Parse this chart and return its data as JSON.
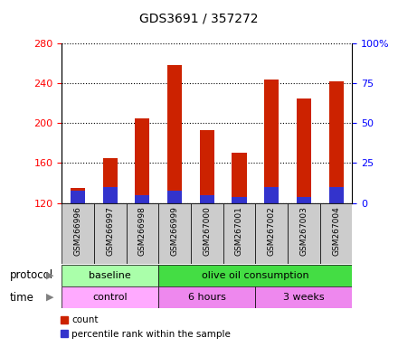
{
  "title": "GDS3691 / 357272",
  "samples": [
    "GSM266996",
    "GSM266997",
    "GSM266998",
    "GSM266999",
    "GSM267000",
    "GSM267001",
    "GSM267002",
    "GSM267003",
    "GSM267004"
  ],
  "bar_bottom": 120,
  "count_values": [
    135,
    165,
    205,
    258,
    193,
    170,
    244,
    225,
    242
  ],
  "pct_rank_values": [
    8,
    10,
    5,
    8,
    5,
    4,
    10,
    4,
    10
  ],
  "bar_color_red": "#cc2200",
  "bar_color_blue": "#3333cc",
  "ylim_left": [
    120,
    280
  ],
  "ylim_right": [
    0,
    100
  ],
  "yticks_left": [
    120,
    160,
    200,
    240,
    280
  ],
  "yticks_right": [
    0,
    25,
    50,
    75,
    100
  ],
  "protocol_baseline_color": "#aaffaa",
  "protocol_olive_color": "#44dd44",
  "time_control_color": "#ffaaff",
  "time_hours_color": "#ee88ee",
  "time_weeks_color": "#ee88ee",
  "legend_count_label": "count",
  "legend_pct_label": "percentile rank within the sample",
  "protocol_label": "protocol",
  "time_label": "time",
  "bg_gray": "#cccccc",
  "bg_plot": "#ffffff"
}
